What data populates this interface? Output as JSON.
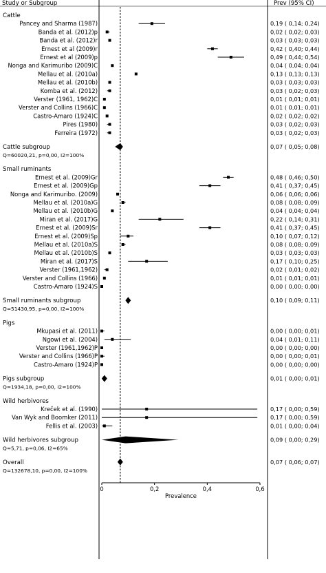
{
  "chart_data": {
    "type": "forest",
    "xlabel": "Prevalence",
    "xlim": [
      0,
      0.6
    ],
    "x_ticks": [
      "0",
      "0,2",
      "0,4",
      "0,6"
    ],
    "reference_line": 0.07,
    "header_left": "Study or Subgroup",
    "header_right": "Prev (95% CI)",
    "rows": [
      {
        "kind": "group",
        "label": "Cattle"
      },
      {
        "kind": "study",
        "label": "Pancey and Sharma (1987)",
        "est": 0.19,
        "lo": 0.14,
        "hi": 0.24,
        "text": "0,19  (  0,14;  0,24)"
      },
      {
        "kind": "study",
        "label": "Banda et al. (2012)p",
        "est": 0.02,
        "lo": 0.02,
        "hi": 0.03,
        "text": "0,02  (  0,02;  0,03)"
      },
      {
        "kind": "study",
        "label": "Banda et al. (2012)r",
        "est": 0.03,
        "lo": 0.03,
        "hi": 0.03,
        "text": "0,03  (  0,03;  0,03)"
      },
      {
        "kind": "study",
        "label": "Ernest et al (2009)r",
        "est": 0.42,
        "lo": 0.4,
        "hi": 0.44,
        "text": "0,42  (  0,40;  0,44)"
      },
      {
        "kind": "study",
        "label": "Ernest et al (2009)p",
        "est": 0.49,
        "lo": 0.44,
        "hi": 0.54,
        "text": "0,49  (  0,44;  0,54)"
      },
      {
        "kind": "study",
        "label": "Nonga and Karimuribo (2009)C",
        "est": 0.04,
        "lo": 0.04,
        "hi": 0.04,
        "text": "0,04  (  0,04;  0,04)"
      },
      {
        "kind": "study",
        "label": "Mellau et al. (2010a)",
        "est": 0.13,
        "lo": 0.13,
        "hi": 0.13,
        "text": "0,13  (  0,13;  0,13)"
      },
      {
        "kind": "study",
        "label": "Mellau et al. (2010b)",
        "est": 0.03,
        "lo": 0.03,
        "hi": 0.03,
        "text": "0,03  (  0,03;  0,03)"
      },
      {
        "kind": "study",
        "label": "Komba et al. (2012)",
        "est": 0.03,
        "lo": 0.02,
        "hi": 0.03,
        "text": "0,03  (  0,02;  0,03)"
      },
      {
        "kind": "study",
        "label": "Verster (1961, 1962)C",
        "est": 0.01,
        "lo": 0.01,
        "hi": 0.01,
        "text": "0,01  (  0,01;  0,01)"
      },
      {
        "kind": "study",
        "label": "Verster and Collins (1966)C",
        "est": 0.01,
        "lo": 0.01,
        "hi": 0.01,
        "text": "0,01  (  0,01;  0,01)"
      },
      {
        "kind": "study",
        "label": "Castro-Amaro (1924)C",
        "est": 0.02,
        "lo": 0.02,
        "hi": 0.02,
        "text": "0,02  (  0,02;  0,02)"
      },
      {
        "kind": "study",
        "label": "Pires (1980)",
        "est": 0.03,
        "lo": 0.02,
        "hi": 0.03,
        "text": "0,03  (  0,02;  0,03)"
      },
      {
        "kind": "study",
        "label": "Ferreira (1972)",
        "est": 0.03,
        "lo": 0.02,
        "hi": 0.03,
        "text": "0,03  (  0,02;  0,03)"
      },
      {
        "kind": "gap"
      },
      {
        "kind": "subtotal",
        "label": "Cattle subgroup",
        "est": 0.07,
        "lo": 0.05,
        "hi": 0.08,
        "text": "0,07  (  0,05;  0,08)",
        "het": "Q=60020,21, p=0,00, I2=100%"
      },
      {
        "kind": "gap"
      },
      {
        "kind": "group",
        "label": "Small ruminants"
      },
      {
        "kind": "study",
        "label": "Ernest et al. (2009)Gr",
        "est": 0.48,
        "lo": 0.46,
        "hi": 0.5,
        "text": "0,48  (  0,46;  0,50)"
      },
      {
        "kind": "study",
        "label": "Ernest et al. (2009)Gp",
        "est": 0.41,
        "lo": 0.37,
        "hi": 0.45,
        "text": "0,41  (  0,37;  0,45)"
      },
      {
        "kind": "study",
        "label": "Nonga and Karimuribo. (2009)",
        "est": 0.06,
        "lo": 0.06,
        "hi": 0.06,
        "text": "0,06  (  0,06;  0,06)"
      },
      {
        "kind": "study",
        "label": "Mellau et al. (2010a)G",
        "est": 0.08,
        "lo": 0.08,
        "hi": 0.09,
        "text": "0,08  (  0,08;  0,09)"
      },
      {
        "kind": "study",
        "label": "Mellau et al. (2010b)G",
        "est": 0.04,
        "lo": 0.04,
        "hi": 0.04,
        "text": "0,04  (  0,04;  0,04)"
      },
      {
        "kind": "study",
        "label": "Miran et al. (2017)G",
        "est": 0.22,
        "lo": 0.14,
        "hi": 0.31,
        "text": "0,22  (  0,14;  0,31)"
      },
      {
        "kind": "study",
        "label": "Ernest et al. (2009)Sr",
        "est": 0.41,
        "lo": 0.37,
        "hi": 0.45,
        "text": "0,41  (  0,37;  0,45)"
      },
      {
        "kind": "study",
        "label": "Ernest et al. (2009)Sp",
        "est": 0.1,
        "lo": 0.07,
        "hi": 0.12,
        "text": "0,10  (  0,07;  0,12)"
      },
      {
        "kind": "study",
        "label": "Mellau et al. (2010a)S",
        "est": 0.08,
        "lo": 0.08,
        "hi": 0.09,
        "text": "0,08  (  0,08;  0,09)"
      },
      {
        "kind": "study",
        "label": "Mellau et al. (2010b)S",
        "est": 0.03,
        "lo": 0.03,
        "hi": 0.03,
        "text": "0,03  (  0,03;  0,03)"
      },
      {
        "kind": "study",
        "label": "Miran et al. (2017)S",
        "est": 0.17,
        "lo": 0.1,
        "hi": 0.25,
        "text": "0,17  (  0,10;  0,25)"
      },
      {
        "kind": "study",
        "label": "Verster (1961,1962)",
        "est": 0.02,
        "lo": 0.01,
        "hi": 0.02,
        "text": "0,02  (  0,01;  0,02)"
      },
      {
        "kind": "study",
        "label": "Verster and Collins (1966)",
        "est": 0.01,
        "lo": 0.01,
        "hi": 0.01,
        "text": "0,01  (  0,01;  0,01)"
      },
      {
        "kind": "study",
        "label": "Castro-Amaro (1924)S",
        "est": 0.0,
        "lo": 0.0,
        "hi": 0.0,
        "text": "0,00  (  0,00;  0,00)"
      },
      {
        "kind": "gap"
      },
      {
        "kind": "subtotal",
        "label": "Small ruminants subgroup",
        "est": 0.1,
        "lo": 0.09,
        "hi": 0.11,
        "text": "0,10  (  0,09;  0,11)",
        "het": "Q=51430,95, p=0,00, I2=100%"
      },
      {
        "kind": "gap"
      },
      {
        "kind": "group",
        "label": "Pigs"
      },
      {
        "kind": "study",
        "label": "Mkupasi et al. (2011)",
        "est": 0.0,
        "lo": 0.0,
        "hi": 0.01,
        "text": "0,00  (  0,00;  0,01)"
      },
      {
        "kind": "study",
        "label": "Ngowi et al. (2004)",
        "est": 0.04,
        "lo": 0.01,
        "hi": 0.11,
        "text": "0,04  (  0,01;  0,11)"
      },
      {
        "kind": "study",
        "label": "Verster (1961,1962)P",
        "est": 0.0,
        "lo": 0.0,
        "hi": 0.0,
        "text": "0,00  (  0,00;  0,00)"
      },
      {
        "kind": "study",
        "label": "Verster and Collins (1966)P",
        "est": 0.0,
        "lo": 0.0,
        "hi": 0.01,
        "text": "0,00  (  0,00;  0,01)"
      },
      {
        "kind": "study",
        "label": "Castro-Amaro (1924)P",
        "est": 0.0,
        "lo": 0.0,
        "hi": 0.0,
        "text": "0,00  (  0,00;  0,00)"
      },
      {
        "kind": "gap"
      },
      {
        "kind": "subtotal",
        "label": "Pigs subgroup",
        "est": 0.01,
        "lo": 0.0,
        "hi": 0.01,
        "text": "0,01  (  0,00;  0,01)",
        "het": "Q=1934,18, p=0,00, I2=100%"
      },
      {
        "kind": "gap"
      },
      {
        "kind": "group",
        "label": "Wild herbivores"
      },
      {
        "kind": "study",
        "label": "Kreček et al. (1990)",
        "est": 0.17,
        "lo": 0.0,
        "hi": 0.59,
        "text": "0,17  (  0,00;  0,59)"
      },
      {
        "kind": "study",
        "label": "Van Wyk and Boomker (2011)",
        "est": 0.17,
        "lo": 0.0,
        "hi": 0.59,
        "text": "0,17  (  0,00;  0,59)"
      },
      {
        "kind": "study",
        "label": "Fellis et al. (2003)",
        "est": 0.01,
        "lo": 0.0,
        "hi": 0.04,
        "text": "0,01  (  0,00;  0,04)"
      },
      {
        "kind": "gap"
      },
      {
        "kind": "subtotal",
        "label": "Wild herbivores subgroup",
        "est": 0.09,
        "lo": 0.0,
        "hi": 0.29,
        "text": "0,09  (  0,00;  0,29)",
        "het": "Q=5,71, p=0,06, I2=65%"
      },
      {
        "kind": "gap"
      },
      {
        "kind": "overall",
        "label": "Overall",
        "est": 0.07,
        "lo": 0.06,
        "hi": 0.07,
        "text": "0,07  (  0,06;  0,07)",
        "het": "Q=132678,10, p=0,00, I2=100%"
      }
    ]
  }
}
